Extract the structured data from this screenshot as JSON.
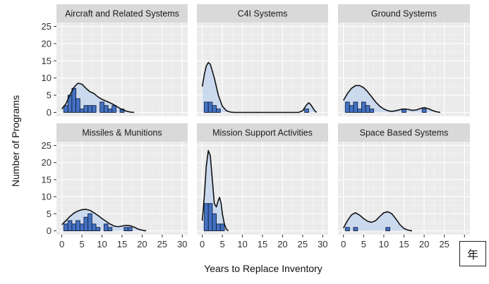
{
  "chart_data": {
    "type": "histogram-density-facets",
    "xlabel": "Years to Replace Inventory",
    "ylabel": "Number of Programs",
    "xlim": [
      0,
      30
    ],
    "ylim": [
      0,
      25
    ],
    "x_ticks": [
      0,
      5,
      10,
      15,
      20,
      25,
      30
    ],
    "y_ticks": [
      0,
      5,
      10,
      15,
      20,
      25
    ],
    "bin_width": 1,
    "grid": true,
    "colors": {
      "panel_bg": "#ebebeb",
      "grid_major": "#ffffff",
      "grid_minor": "#f6f6f6",
      "strip_bg": "#d9d9d9",
      "bar_fill": "#4472c4",
      "bar_edge": "#13213f",
      "density_fill": "#c6d6ee",
      "density_line": "#111111"
    },
    "facets": [
      {
        "title": "Aircraft and Related Systems",
        "bins": [
          {
            "x": 1,
            "count": 2
          },
          {
            "x": 2,
            "count": 5
          },
          {
            "x": 3,
            "count": 7
          },
          {
            "x": 4,
            "count": 4
          },
          {
            "x": 5,
            "count": 1
          },
          {
            "x": 6,
            "count": 2
          },
          {
            "x": 7,
            "count": 2
          },
          {
            "x": 8,
            "count": 2
          },
          {
            "x": 10,
            "count": 3
          },
          {
            "x": 11,
            "count": 2
          },
          {
            "x": 12,
            "count": 1
          },
          {
            "x": 13,
            "count": 2
          },
          {
            "x": 15,
            "count": 1
          }
        ],
        "density": [
          [
            0,
            1
          ],
          [
            1,
            2.5
          ],
          [
            2,
            5
          ],
          [
            3,
            7.3
          ],
          [
            4,
            8.5
          ],
          [
            5,
            8.2
          ],
          [
            6,
            7
          ],
          [
            7,
            6
          ],
          [
            8,
            5.5
          ],
          [
            9,
            4.5
          ],
          [
            10,
            3.8
          ],
          [
            11,
            3.3
          ],
          [
            12,
            2.8
          ],
          [
            13,
            2.2
          ],
          [
            14,
            1.5
          ],
          [
            15,
            0.8
          ],
          [
            16,
            0.4
          ],
          [
            17,
            0.1
          ],
          [
            18,
            0
          ]
        ]
      },
      {
        "title": "C4I Systems",
        "bins": [
          {
            "x": 1,
            "count": 3
          },
          {
            "x": 2,
            "count": 3
          },
          {
            "x": 3,
            "count": 2
          },
          {
            "x": 4,
            "count": 1
          },
          {
            "x": 26,
            "count": 1
          }
        ],
        "density": [
          [
            0,
            7.5
          ],
          [
            0.5,
            11
          ],
          [
            1,
            13.5
          ],
          [
            1.5,
            14.5
          ],
          [
            2,
            14
          ],
          [
            3,
            10
          ],
          [
            4,
            5
          ],
          [
            5,
            1.8
          ],
          [
            6,
            0.5
          ],
          [
            7,
            0.1
          ],
          [
            8,
            0
          ],
          [
            24,
            0
          ],
          [
            25,
            0.5
          ],
          [
            26,
            2.2
          ],
          [
            26.5,
            2.8
          ],
          [
            27,
            2.3
          ],
          [
            28,
            0.5
          ],
          [
            28.5,
            0
          ]
        ]
      },
      {
        "title": "Ground Systems",
        "bins": [
          {
            "x": 1,
            "count": 3
          },
          {
            "x": 2,
            "count": 2
          },
          {
            "x": 3,
            "count": 3
          },
          {
            "x": 4,
            "count": 1
          },
          {
            "x": 5,
            "count": 3
          },
          {
            "x": 6,
            "count": 2
          },
          {
            "x": 7,
            "count": 1
          },
          {
            "x": 15,
            "count": 1
          },
          {
            "x": 20,
            "count": 1
          }
        ],
        "density": [
          [
            0,
            3.5
          ],
          [
            1,
            5.5
          ],
          [
            2,
            7
          ],
          [
            3,
            7.8
          ],
          [
            4,
            7.8
          ],
          [
            5,
            7.2
          ],
          [
            6,
            6
          ],
          [
            7,
            4.5
          ],
          [
            8,
            3
          ],
          [
            9,
            1.8
          ],
          [
            10,
            1
          ],
          [
            11,
            0.5
          ],
          [
            12,
            0.3
          ],
          [
            13,
            0.5
          ],
          [
            14,
            0.8
          ],
          [
            15,
            1
          ],
          [
            16,
            0.9
          ],
          [
            17,
            0.6
          ],
          [
            18,
            0.7
          ],
          [
            19,
            1.1
          ],
          [
            20,
            1.4
          ],
          [
            21,
            1.1
          ],
          [
            22,
            0.6
          ],
          [
            23,
            0.2
          ],
          [
            24,
            0
          ]
        ]
      },
      {
        "title": "Missiles & Munitions",
        "bins": [
          {
            "x": 1,
            "count": 2
          },
          {
            "x": 2,
            "count": 3
          },
          {
            "x": 3,
            "count": 2
          },
          {
            "x": 4,
            "count": 3
          },
          {
            "x": 5,
            "count": 2
          },
          {
            "x": 6,
            "count": 4
          },
          {
            "x": 7,
            "count": 5
          },
          {
            "x": 8,
            "count": 2
          },
          {
            "x": 9,
            "count": 1
          },
          {
            "x": 11,
            "count": 2
          },
          {
            "x": 12,
            "count": 1
          },
          {
            "x": 16,
            "count": 1
          },
          {
            "x": 17,
            "count": 1
          }
        ],
        "density": [
          [
            0,
            1.8
          ],
          [
            1,
            3
          ],
          [
            2,
            4.2
          ],
          [
            3,
            5.2
          ],
          [
            4,
            5.8
          ],
          [
            5,
            6.2
          ],
          [
            6,
            6.3
          ],
          [
            7,
            6
          ],
          [
            8,
            5.3
          ],
          [
            9,
            4.5
          ],
          [
            10,
            3.6
          ],
          [
            11,
            2.8
          ],
          [
            12,
            2
          ],
          [
            13,
            1.4
          ],
          [
            14,
            1.2
          ],
          [
            15,
            1.4
          ],
          [
            16,
            1.6
          ],
          [
            17,
            1.5
          ],
          [
            18,
            1.1
          ],
          [
            19,
            0.5
          ],
          [
            20,
            0.2
          ],
          [
            21,
            0
          ]
        ]
      },
      {
        "title": "Mission Support Activities",
        "bins": [
          {
            "x": 1,
            "count": 8
          },
          {
            "x": 2,
            "count": 8
          },
          {
            "x": 3,
            "count": 5
          },
          {
            "x": 4,
            "count": 2
          },
          {
            "x": 5,
            "count": 2
          }
        ],
        "density": [
          [
            0,
            3
          ],
          [
            0.5,
            10
          ],
          [
            1,
            19
          ],
          [
            1.5,
            23.5
          ],
          [
            2,
            22
          ],
          [
            2.5,
            15
          ],
          [
            3,
            8
          ],
          [
            3.5,
            7
          ],
          [
            4,
            9
          ],
          [
            4.3,
            9.8
          ],
          [
            4.7,
            8
          ],
          [
            5,
            5
          ],
          [
            5.5,
            2
          ],
          [
            6,
            0.5
          ],
          [
            6.5,
            0
          ]
        ]
      },
      {
        "title": "Space Based Systems",
        "bins": [
          {
            "x": 1,
            "count": 1
          },
          {
            "x": 3,
            "count": 1
          },
          {
            "x": 11,
            "count": 1
          }
        ],
        "density": [
          [
            0,
            0.8
          ],
          [
            1,
            3
          ],
          [
            2,
            4.7
          ],
          [
            3,
            5.3
          ],
          [
            4,
            4.6
          ],
          [
            5,
            3.6
          ],
          [
            6,
            2.8
          ],
          [
            7,
            2.5
          ],
          [
            8,
            3
          ],
          [
            9,
            4.2
          ],
          [
            10,
            5.3
          ],
          [
            11,
            5.6
          ],
          [
            12,
            5
          ],
          [
            13,
            3.5
          ],
          [
            14,
            1.8
          ],
          [
            15,
            0.7
          ],
          [
            16,
            0.2
          ],
          [
            17,
            0
          ]
        ]
      }
    ]
  },
  "corner_badge": "年"
}
